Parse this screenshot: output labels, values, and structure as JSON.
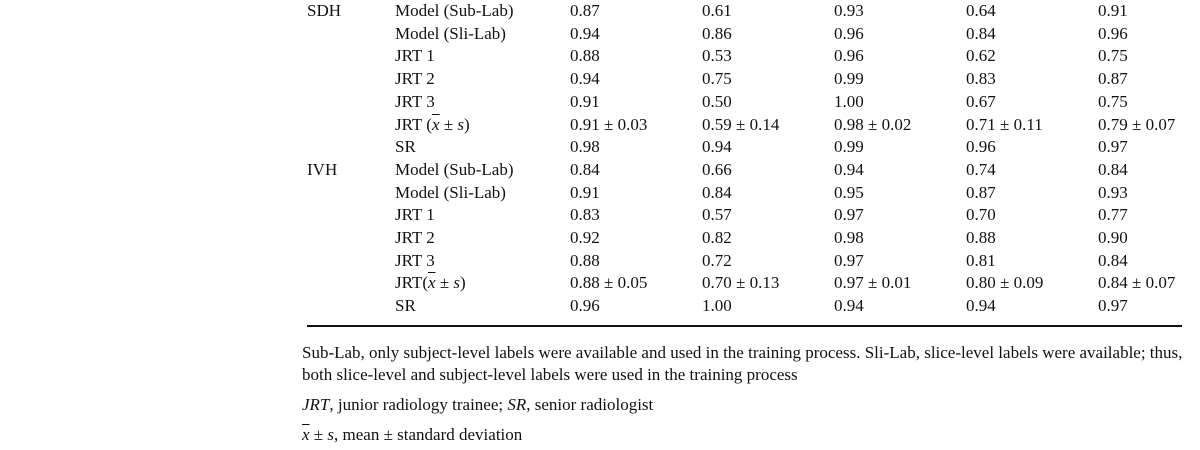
{
  "table": {
    "groups": [
      {
        "name": "SDH",
        "rows": [
          {
            "method": "Model (Sub-Lab)",
            "values": [
              "0.87",
              "0.61",
              "0.93",
              "0.64",
              "0.91"
            ]
          },
          {
            "method": "Model (Sli-Lab)",
            "values": [
              "0.94",
              "0.86",
              "0.96",
              "0.84",
              "0.96"
            ]
          },
          {
            "method": "JRT 1",
            "values": [
              "0.88",
              "0.53",
              "0.96",
              "0.62",
              "0.75"
            ]
          },
          {
            "method": "JRT 2",
            "values": [
              "0.94",
              "0.75",
              "0.99",
              "0.83",
              "0.87"
            ]
          },
          {
            "method": "JRT 3",
            "values": [
              "0.91",
              "0.50",
              "1.00",
              "0.67",
              "0.75"
            ]
          },
          {
            "method": "JRT",
            "method_suffix_mean": "x",
            "method_suffix_rest": " ± s",
            "method_gap": " (",
            "method_close": ")",
            "values": [
              "0.91 ± 0.03",
              "0.59 ± 0.14",
              "0.98 ± 0.02",
              "0.71 ± 0.11",
              "0.79 ± 0.07"
            ]
          },
          {
            "method": "SR",
            "values": [
              "0.98",
              "0.94",
              "0.99",
              "0.96",
              "0.97"
            ]
          }
        ]
      },
      {
        "name": "IVH",
        "rows": [
          {
            "method": "Model (Sub-Lab)",
            "values": [
              "0.84",
              "0.66",
              "0.94",
              "0.74",
              "0.84"
            ]
          },
          {
            "method": "Model (Sli-Lab)",
            "values": [
              "0.91",
              "0.84",
              "0.95",
              "0.87",
              "0.93"
            ]
          },
          {
            "method": "JRT 1",
            "values": [
              "0.83",
              "0.57",
              "0.97",
              "0.70",
              "0.77"
            ]
          },
          {
            "method": "JRT 2",
            "values": [
              "0.92",
              "0.82",
              "0.98",
              "0.88",
              "0.90"
            ]
          },
          {
            "method": "JRT 3",
            "values": [
              "0.88",
              "0.72",
              "0.97",
              "0.81",
              "0.84"
            ]
          },
          {
            "method": "JRT",
            "method_suffix_mean": "x",
            "method_suffix_rest": " ± s",
            "method_gap": "(",
            "method_close": ")",
            "values": [
              "0.88 ± 0.05",
              "0.70 ± 0.13",
              "0.97 ± 0.01",
              "0.80 ± 0.09",
              "0.84 ± 0.07"
            ]
          },
          {
            "method": "SR",
            "values": [
              "0.96",
              "1.00",
              "0.94",
              "0.94",
              "0.97"
            ]
          }
        ]
      }
    ]
  },
  "footnotes": {
    "labels_note": "Sub-Lab, only subject-level labels were available and used in the training process. Sli-Lab, slice-level labels were available; thus, both slice-level and subject-level labels were used in the training process",
    "abbrev_jrt": "JRT",
    "abbrev_jrt_def": ", junior radiology trainee; ",
    "abbrev_sr": "SR",
    "abbrev_sr_def": ", senior radiologist",
    "stat_mean": "x",
    "stat_rest": " ± ",
    "stat_s": "s",
    "stat_def": ", mean ± standard deviation"
  }
}
